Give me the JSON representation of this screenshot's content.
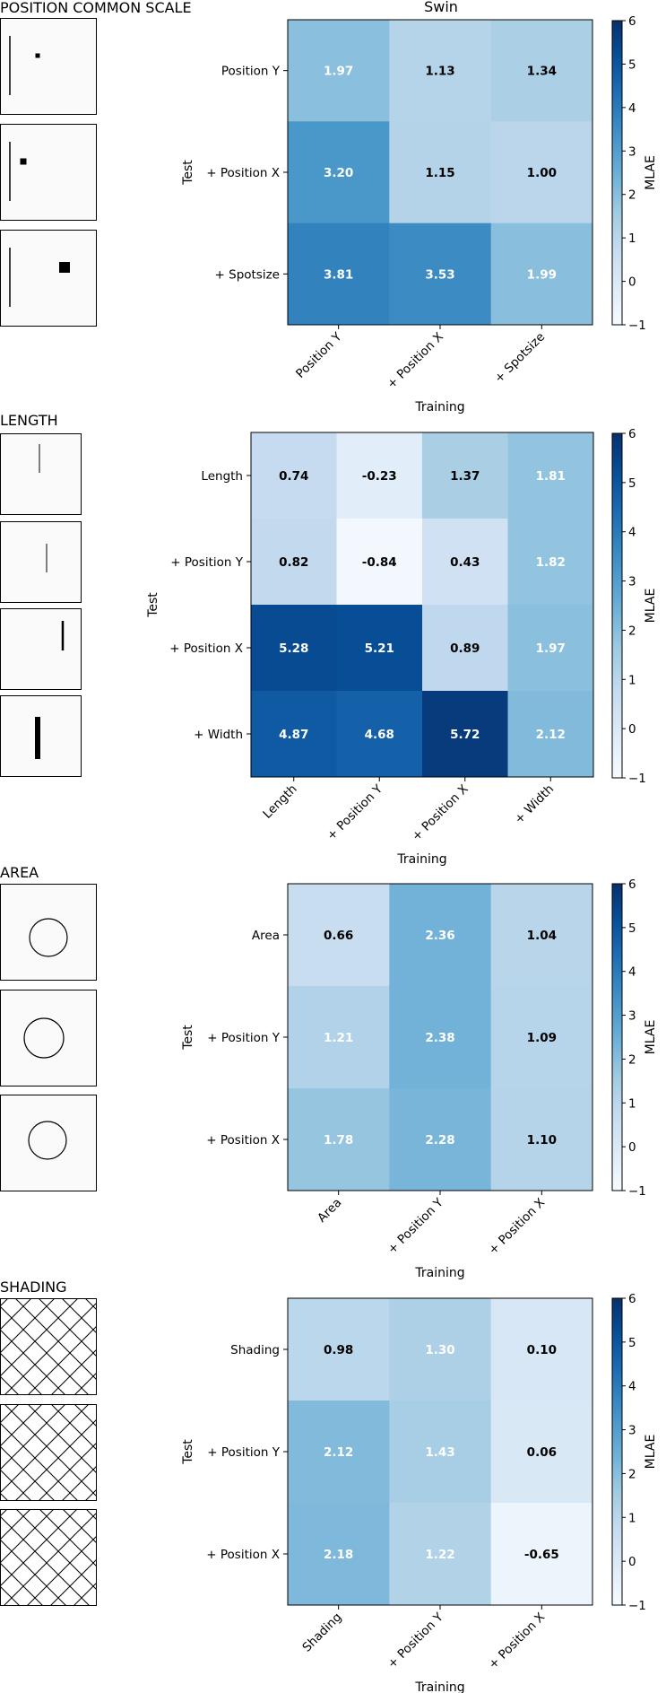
{
  "figure_title": "Swin",
  "colorbar_label": "MLAE",
  "colorbar_ticks": [
    "6",
    "5",
    "4",
    "3",
    "2",
    "1",
    "0",
    "−1"
  ],
  "colorscale": {
    "min": -1,
    "max": 6,
    "stops": [
      "#f7fbff",
      "#deebf7",
      "#c6dbef",
      "#9ecae1",
      "#6baed6",
      "#4292c6",
      "#2171b5",
      "#08519c",
      "#08306b"
    ]
  },
  "chart_data": [
    {
      "type": "heatmap",
      "section_title": "POSITION COMMON SCALE",
      "xlabel": "Training",
      "ylabel": "Test",
      "x_categories": [
        "Position Y",
        "+ Position X",
        "+ Spotsize"
      ],
      "y_categories": [
        "Position Y",
        "+ Position X",
        "+ Spotsize"
      ],
      "value_labels": [
        [
          "1.97",
          "1.13",
          "1.34"
        ],
        [
          "3.20",
          "1.15",
          "1.00"
        ],
        [
          "3.81",
          "3.53",
          "1.99"
        ]
      ],
      "values": [
        [
          1.97,
          1.13,
          1.34
        ],
        [
          3.2,
          1.15,
          1.0
        ],
        [
          3.81,
          3.53,
          1.99
        ]
      ],
      "clim": [
        -1,
        6
      ],
      "thumbnails": "position"
    },
    {
      "type": "heatmap",
      "section_title": "LENGTH",
      "xlabel": "Training",
      "ylabel": "Test",
      "x_categories": [
        "Length",
        "+ Position Y",
        "+ Position X",
        "+ Width"
      ],
      "y_categories": [
        "Length",
        "+ Position Y",
        "+ Position X",
        "+ Width"
      ],
      "value_labels": [
        [
          "0.74",
          "-0.23",
          "1.37",
          "1.81"
        ],
        [
          "0.82",
          "-0.84",
          "0.43",
          "1.82"
        ],
        [
          "5.28",
          "5.21",
          "0.89",
          "1.97"
        ],
        [
          "4.87",
          "4.68",
          "5.72",
          "2.12"
        ]
      ],
      "values": [
        [
          0.74,
          -0.23,
          1.37,
          1.81
        ],
        [
          0.82,
          -0.84,
          0.43,
          1.82
        ],
        [
          5.28,
          5.21,
          0.89,
          1.97
        ],
        [
          4.87,
          4.68,
          5.72,
          2.12
        ]
      ],
      "clim": [
        -1,
        6
      ],
      "thumbnails": "length"
    },
    {
      "type": "heatmap",
      "section_title": "AREA",
      "xlabel": "Training",
      "ylabel": "Test",
      "x_categories": [
        "Area",
        "+ Position Y",
        "+ Position X"
      ],
      "y_categories": [
        "Area",
        "+ Position Y",
        "+ Position X"
      ],
      "value_labels": [
        [
          "0.66",
          "2.36",
          "1.04"
        ],
        [
          "1.21",
          "2.38",
          "1.09"
        ],
        [
          "1.78",
          "2.28",
          "1.10"
        ]
      ],
      "values": [
        [
          0.66,
          2.36,
          1.04
        ],
        [
          1.21,
          2.38,
          1.09
        ],
        [
          1.78,
          2.28,
          1.1
        ]
      ],
      "clim": [
        -1,
        6
      ],
      "thumbnails": "area"
    },
    {
      "type": "heatmap",
      "section_title": "SHADING",
      "xlabel": "Training",
      "ylabel": "Test",
      "x_categories": [
        "Shading",
        "+ Position Y",
        "+ Position X"
      ],
      "y_categories": [
        "Shading",
        "+ Position Y",
        "+ Position X"
      ],
      "value_labels": [
        [
          "0.98",
          "1.30",
          "0.10"
        ],
        [
          "2.12",
          "1.43",
          "0.06"
        ],
        [
          "2.18",
          "1.22",
          "-0.65"
        ]
      ],
      "values": [
        [
          0.98,
          1.3,
          0.1
        ],
        [
          2.12,
          1.43,
          0.06
        ],
        [
          2.18,
          1.22,
          -0.65
        ]
      ],
      "clim": [
        -1,
        6
      ],
      "thumbnails": "shading"
    }
  ]
}
